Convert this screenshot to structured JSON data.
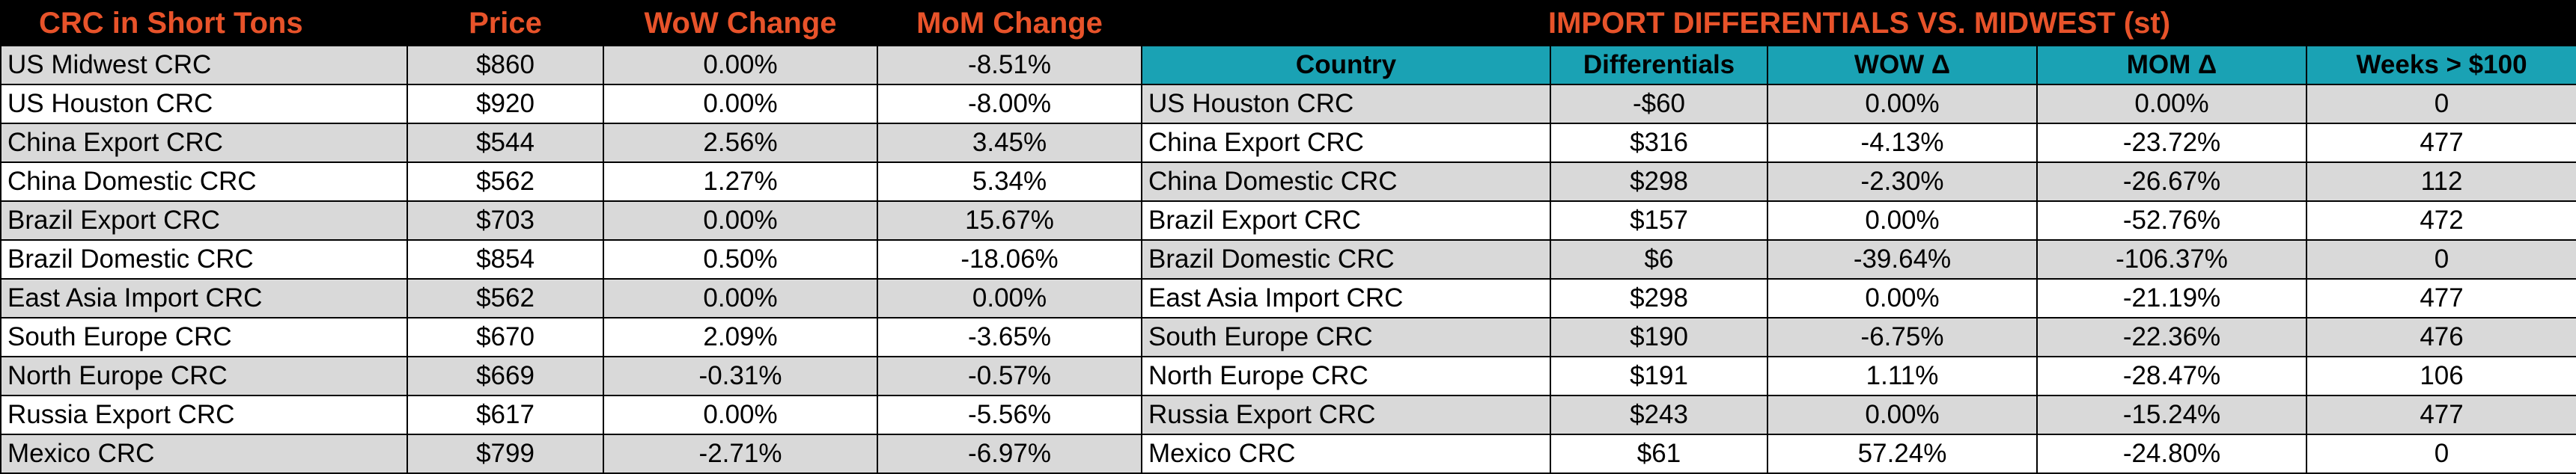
{
  "left_table": {
    "headers": [
      "CRC in Short Tons",
      "Price",
      "WoW Change",
      "MoM Change"
    ],
    "rows": [
      [
        "US Midwest CRC",
        "$860",
        "0.00%",
        "-8.51%"
      ],
      [
        "US Houston CRC",
        "$920",
        "0.00%",
        "-8.00%"
      ],
      [
        "China Export CRC",
        "$544",
        "2.56%",
        "3.45%"
      ],
      [
        "China Domestic CRC",
        "$562",
        "1.27%",
        "5.34%"
      ],
      [
        "Brazil Export CRC",
        "$703",
        "0.00%",
        "15.67%"
      ],
      [
        "Brazil Domestic CRC",
        "$854",
        "0.50%",
        "-18.06%"
      ],
      [
        "East Asia Import CRC",
        "$562",
        "0.00%",
        "0.00%"
      ],
      [
        "South Europe CRC",
        "$670",
        "2.09%",
        "-3.65%"
      ],
      [
        "North Europe CRC",
        "$669",
        "-0.31%",
        "-0.57%"
      ],
      [
        "Russia Export CRC",
        "$617",
        "0.00%",
        "-5.56%"
      ],
      [
        "Mexico CRC",
        "$799",
        "-2.71%",
        "-6.97%"
      ]
    ]
  },
  "right_table": {
    "title": "IMPORT DIFFERENTIALS VS. MIDWEST (st)",
    "headers": [
      "Country",
      "Differentials",
      "WOW Δ",
      "MOM Δ",
      "Weeks > $100"
    ],
    "rows": [
      [
        "US Houston CRC",
        "-$60",
        "0.00%",
        "0.00%",
        "0"
      ],
      [
        "China Export CRC",
        "$316",
        "-4.13%",
        "-23.72%",
        "477"
      ],
      [
        "China Domestic CRC",
        "$298",
        "-2.30%",
        "-26.67%",
        "112"
      ],
      [
        "Brazil Export CRC",
        "$157",
        "0.00%",
        "-52.76%",
        "472"
      ],
      [
        "Brazil Domestic CRC",
        "$6",
        "-39.64%",
        "-106.37%",
        "0"
      ],
      [
        "East Asia Import CRC",
        "$298",
        "0.00%",
        "-21.19%",
        "477"
      ],
      [
        "South Europe CRC",
        "$190",
        "-6.75%",
        "-22.36%",
        "476"
      ],
      [
        "North Europe CRC",
        "$191",
        "1.11%",
        "-28.47%",
        "106"
      ],
      [
        "Russia Export CRC",
        "$243",
        "0.00%",
        "-15.24%",
        "477"
      ],
      [
        "Mexico CRC",
        "$61",
        "57.24%",
        "-24.80%",
        "0"
      ]
    ]
  },
  "colors": {
    "title_text": "#e8532a",
    "title_bg": "#000000",
    "header_bg": "#1aa2b4",
    "band": "#d9d9d9"
  }
}
